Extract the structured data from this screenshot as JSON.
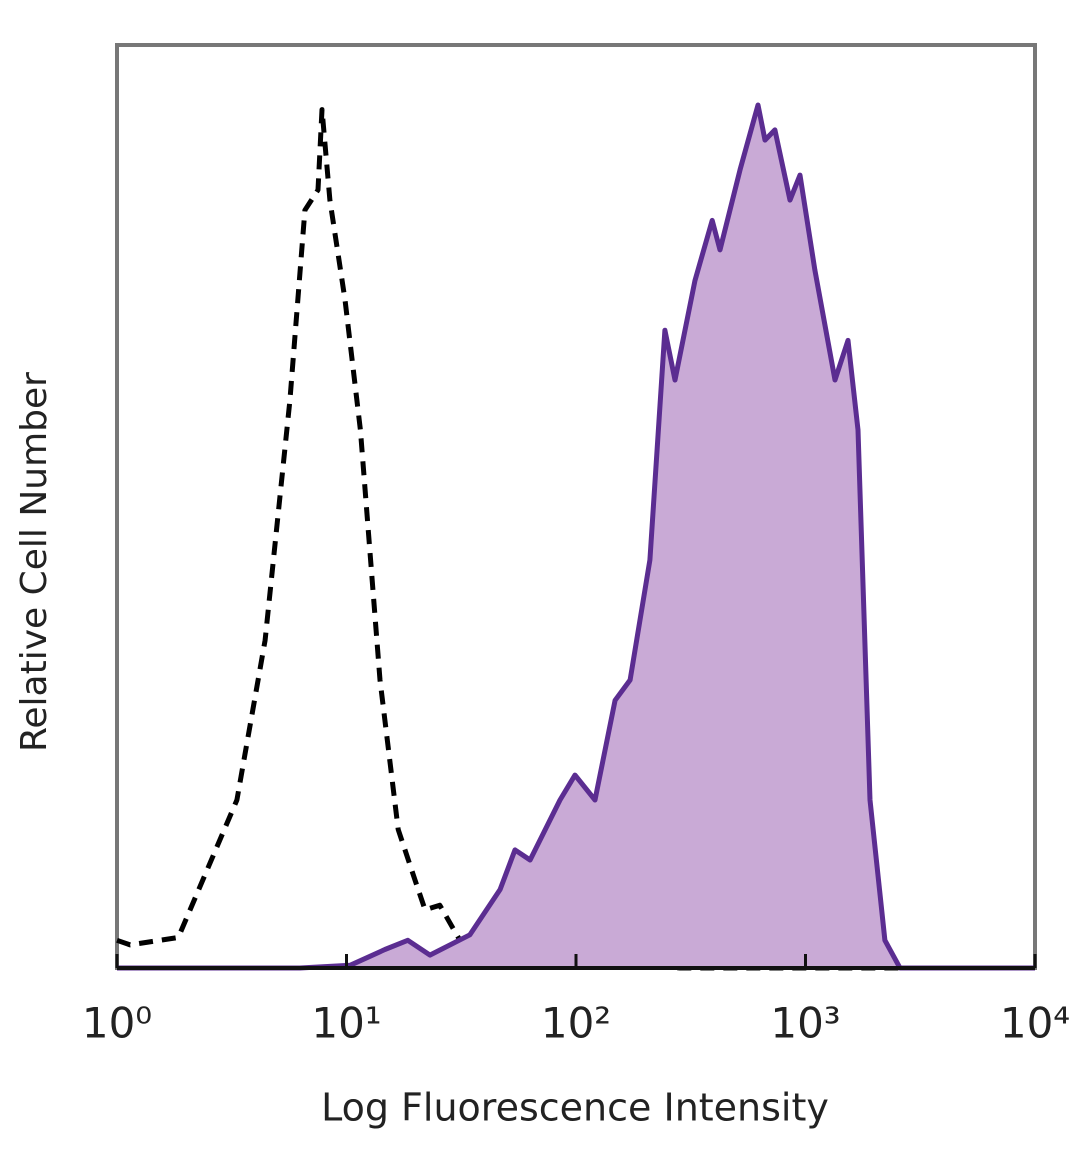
{
  "chart_data": {
    "type": "histogram-overlay",
    "xlabel": "Log Fluorescence Intensity",
    "ylabel": "Relative Cell Number",
    "xscale": "log",
    "xlim": [
      1,
      10000
    ],
    "ylim": [
      0,
      100
    ],
    "xticks": [
      {
        "value": 1,
        "label": "10⁰"
      },
      {
        "value": 10,
        "label": "10¹"
      },
      {
        "value": 100,
        "label": "10²"
      },
      {
        "value": 1000,
        "label": "10³"
      },
      {
        "value": 10000,
        "label": "10⁴"
      }
    ],
    "series": [
      {
        "color": "#000000",
        "style": "dashed",
        "filled": false,
        "x": [
          1,
          1.14,
          1.85,
          3.33,
          4.42,
          5.67,
          6.59,
          7.51,
          7.82,
          8.47,
          9.85,
          11.5,
          14.0,
          16.8,
          19.9,
          22.0,
          25.5,
          31.2,
          46.7,
          69.7,
          127,
          156,
          284,
          10000
        ],
        "values": [
          3.0,
          2.5,
          3.3,
          18.2,
          35.5,
          61.5,
          82.1,
          84.3,
          93.0,
          83.2,
          72.4,
          58.3,
          31.2,
          15.0,
          9.5,
          6.3,
          6.8,
          3.0,
          1.4,
          0.7,
          2.0,
          0.7,
          0,
          0
        ]
      },
      {
        "color": "#5b2d91",
        "fill": "#c9aad6",
        "style": "solid",
        "filled": true,
        "x": [
          1,
          6.27,
          10.4,
          14.7,
          18.5,
          23.1,
          34.5,
          46.7,
          54.2,
          63.1,
          85.2,
          99,
          121,
          148,
          172,
          210,
          244,
          270,
          330,
          392,
          424,
          519,
          621,
          666,
          736,
          856,
          946,
          1099,
          1345,
          1532,
          1694,
          1910,
          2219,
          2582,
          10000
        ],
        "values": [
          0,
          0,
          0.3,
          2.0,
          3.0,
          1.4,
          3.6,
          8.5,
          12.8,
          11.7,
          18.2,
          20.9,
          18.2,
          29.0,
          31.2,
          44.2,
          69.1,
          63.7,
          74.5,
          81.0,
          77.8,
          86.5,
          93.5,
          89.7,
          90.8,
          83.2,
          85.9,
          75.6,
          63.7,
          68.0,
          58.3,
          18.2,
          3.0,
          0,
          0
        ]
      }
    ]
  }
}
